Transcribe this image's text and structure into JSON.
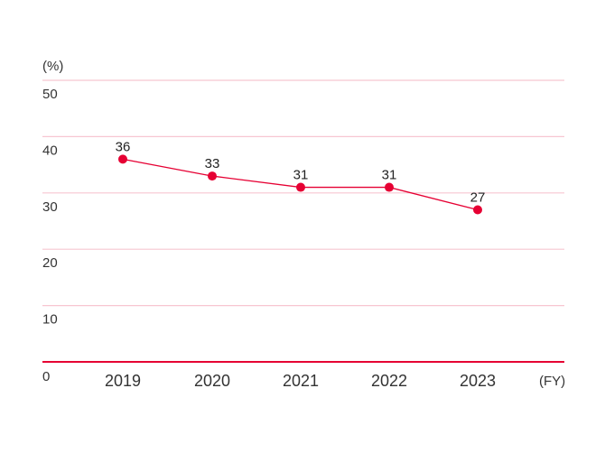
{
  "chart_data": {
    "type": "line",
    "categories": [
      "2019",
      "2020",
      "2021",
      "2022",
      "2023"
    ],
    "series": [
      {
        "values": [
          36,
          33,
          31,
          31,
          27
        ]
      }
    ],
    "y_unit": "(%)",
    "x_unit": "(FY)",
    "y_ticks": [
      "0",
      "10",
      "20",
      "30",
      "40",
      "50"
    ],
    "ylim": [
      0,
      50
    ],
    "grid": true,
    "colors": {
      "line": "#e60033",
      "grid": "#f7c6d1",
      "baseline": "#e60033"
    }
  }
}
